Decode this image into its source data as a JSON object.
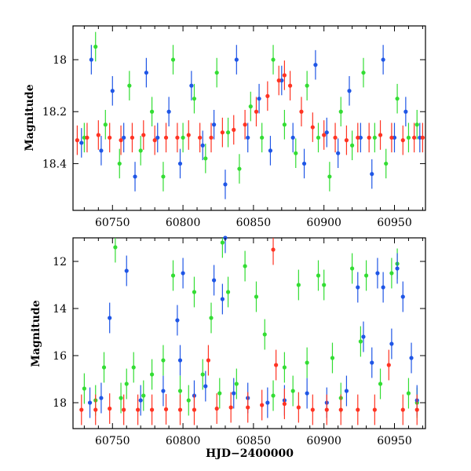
{
  "chart_data": [
    {
      "type": "scatter",
      "title": "",
      "xlabel": "",
      "ylabel": "Magnitude",
      "xlim": [
        60722,
        60972
      ],
      "ylim": [
        18.58,
        17.87
      ],
      "y_inverted": true,
      "error_bars": true,
      "x_ticks": [
        60750,
        60800,
        60850,
        60900,
        60950
      ],
      "y_ticks": [
        18,
        18.2,
        18.4
      ],
      "x_tick_labels": [
        "60750",
        "60800",
        "60850",
        "60900",
        "60950"
      ],
      "y_tick_labels": [
        "18",
        "18.2",
        "18.4"
      ],
      "series": [
        {
          "color": "#33dd33",
          "points": [
            [
              60730,
              18.3
            ],
            [
              60738,
              17.95
            ],
            [
              60745,
              18.25
            ],
            [
              60755,
              18.4
            ],
            [
              60762,
              18.1
            ],
            [
              60770,
              18.35
            ],
            [
              60778,
              18.2
            ],
            [
              60786,
              18.45
            ],
            [
              60793,
              18.0
            ],
            [
              60800,
              18.3
            ],
            [
              60808,
              18.15
            ],
            [
              60816,
              18.38
            ],
            [
              60824,
              18.05
            ],
            [
              60832,
              18.28
            ],
            [
              60840,
              18.42
            ],
            [
              60848,
              18.18
            ],
            [
              60856,
              18.3
            ],
            [
              60864,
              18.0
            ],
            [
              60872,
              18.25
            ],
            [
              60880,
              18.36
            ],
            [
              60888,
              18.1
            ],
            [
              60896,
              18.3
            ],
            [
              60904,
              18.45
            ],
            [
              60912,
              18.2
            ],
            [
              60920,
              18.33
            ],
            [
              60928,
              18.05
            ],
            [
              60936,
              18.3
            ],
            [
              60944,
              18.4
            ],
            [
              60952,
              18.15
            ],
            [
              60960,
              18.3
            ],
            [
              60966,
              18.25
            ]
          ]
        },
        {
          "color": "#1f56e6",
          "points": [
            [
              60728,
              18.32
            ],
            [
              60735,
              18.0
            ],
            [
              60742,
              18.35
            ],
            [
              60750,
              18.12
            ],
            [
              60758,
              18.3
            ],
            [
              60766,
              18.45
            ],
            [
              60774,
              18.05
            ],
            [
              60782,
              18.3
            ],
            [
              60790,
              18.2
            ],
            [
              60798,
              18.4
            ],
            [
              60806,
              18.1
            ],
            [
              60814,
              18.33
            ],
            [
              60822,
              18.25
            ],
            [
              60830,
              18.48
            ],
            [
              60838,
              18.0
            ],
            [
              60846,
              18.3
            ],
            [
              60854,
              18.15
            ],
            [
              60862,
              18.35
            ],
            [
              60870,
              18.08
            ],
            [
              60878,
              18.3
            ],
            [
              60886,
              18.4
            ],
            [
              60894,
              18.02
            ],
            [
              60902,
              18.28
            ],
            [
              60910,
              18.36
            ],
            [
              60918,
              18.12
            ],
            [
              60926,
              18.3
            ],
            [
              60934,
              18.44
            ],
            [
              60942,
              18.0
            ],
            [
              60950,
              18.3
            ],
            [
              60958,
              18.2
            ],
            [
              60968,
              18.3
            ]
          ]
        },
        {
          "color": "#ff3322",
          "points": [
            [
              60725,
              18.31
            ],
            [
              60732,
              18.3
            ],
            [
              60740,
              18.29
            ],
            [
              60748,
              18.3
            ],
            [
              60756,
              18.31
            ],
            [
              60764,
              18.3
            ],
            [
              60772,
              18.29
            ],
            [
              60780,
              18.31
            ],
            [
              60788,
              18.3
            ],
            [
              60796,
              18.3
            ],
            [
              60804,
              18.29
            ],
            [
              60812,
              18.3
            ],
            [
              60820,
              18.3
            ],
            [
              60828,
              18.28
            ],
            [
              60836,
              18.27
            ],
            [
              60844,
              18.25
            ],
            [
              60852,
              18.2
            ],
            [
              60860,
              18.14
            ],
            [
              60868,
              18.08
            ],
            [
              60872,
              18.06
            ],
            [
              60876,
              18.1
            ],
            [
              60884,
              18.2
            ],
            [
              60892,
              18.26
            ],
            [
              60900,
              18.29
            ],
            [
              60908,
              18.3
            ],
            [
              60916,
              18.31
            ],
            [
              60924,
              18.3
            ],
            [
              60932,
              18.3
            ],
            [
              60940,
              18.29
            ],
            [
              60948,
              18.3
            ],
            [
              60956,
              18.31
            ],
            [
              60964,
              18.3
            ],
            [
              60970,
              18.3
            ]
          ]
        }
      ]
    },
    {
      "type": "scatter",
      "title": "",
      "xlabel": "HJD−2400000",
      "ylabel": "Magnitude",
      "xlim": [
        60722,
        60972
      ],
      "ylim": [
        19.1,
        11.0
      ],
      "y_inverted": true,
      "error_bars": true,
      "x_ticks": [
        60750,
        60800,
        60850,
        60900,
        60950
      ],
      "y_ticks": [
        12,
        14,
        16,
        18
      ],
      "x_tick_labels": [
        "60750",
        "60800",
        "60850",
        "60900",
        "60950"
      ],
      "y_tick_labels": [
        "12",
        "14",
        "16",
        "18"
      ],
      "series": [
        {
          "color": "#33dd33",
          "points": [
            [
              60730,
              17.4
            ],
            [
              60738,
              17.9
            ],
            [
              60744,
              16.5
            ],
            [
              60752,
              11.4
            ],
            [
              60756,
              17.8
            ],
            [
              60760,
              17.2
            ],
            [
              60765,
              16.5
            ],
            [
              60772,
              17.7
            ],
            [
              60778,
              16.8
            ],
            [
              60786,
              16.2
            ],
            [
              60793,
              12.6
            ],
            [
              60798,
              17.5
            ],
            [
              60804,
              17.9
            ],
            [
              60808,
              13.3
            ],
            [
              60814,
              16.8
            ],
            [
              60820,
              14.4
            ],
            [
              60826,
              17.6
            ],
            [
              60828,
              11.2
            ],
            [
              60832,
              13.3
            ],
            [
              60838,
              17.2
            ],
            [
              60844,
              12.2
            ],
            [
              60852,
              13.5
            ],
            [
              60858,
              15.1
            ],
            [
              60864,
              17.7
            ],
            [
              60872,
              16.5
            ],
            [
              60878,
              17.5
            ],
            [
              60882,
              13.0
            ],
            [
              60888,
              16.3
            ],
            [
              60896,
              12.6
            ],
            [
              60900,
              13.0
            ],
            [
              60906,
              16.1
            ],
            [
              60912,
              17.8
            ],
            [
              60920,
              12.3
            ],
            [
              60926,
              15.4
            ],
            [
              60930,
              12.6
            ],
            [
              60940,
              17.2
            ],
            [
              60948,
              12.5
            ],
            [
              60952,
              12.1
            ],
            [
              60960,
              17.6
            ],
            [
              60966,
              18.0
            ]
          ]
        },
        {
          "color": "#1f56e6",
          "points": [
            [
              60734,
              18.0
            ],
            [
              60742,
              17.8
            ],
            [
              60748,
              14.4
            ],
            [
              60760,
              12.4
            ],
            [
              60770,
              17.9
            ],
            [
              60786,
              17.5
            ],
            [
              60796,
              14.5
            ],
            [
              60798,
              16.2
            ],
            [
              60800,
              12.5
            ],
            [
              60808,
              17.7
            ],
            [
              60816,
              17.3
            ],
            [
              60822,
              12.8
            ],
            [
              60828,
              13.6
            ],
            [
              60830,
              11.0
            ],
            [
              60836,
              17.6
            ],
            [
              60846,
              17.8
            ],
            [
              60860,
              18.0
            ],
            [
              60872,
              17.9
            ],
            [
              60888,
              17.6
            ],
            [
              60902,
              18.0
            ],
            [
              60916,
              17.5
            ],
            [
              60924,
              13.1
            ],
            [
              60928,
              15.2
            ],
            [
              60934,
              16.3
            ],
            [
              60938,
              12.5
            ],
            [
              60942,
              13.1
            ],
            [
              60948,
              15.5
            ],
            [
              60952,
              12.3
            ],
            [
              60956,
              13.5
            ],
            [
              60962,
              16.1
            ],
            [
              60966,
              17.9
            ]
          ]
        },
        {
          "color": "#ff3322",
          "points": [
            [
              60728,
              18.3
            ],
            [
              60738,
              18.3
            ],
            [
              60748,
              18.25
            ],
            [
              60758,
              18.3
            ],
            [
              60768,
              18.3
            ],
            [
              60778,
              18.3
            ],
            [
              60788,
              18.28
            ],
            [
              60798,
              18.3
            ],
            [
              60808,
              18.3
            ],
            [
              60818,
              16.2
            ],
            [
              60824,
              18.25
            ],
            [
              60834,
              18.2
            ],
            [
              60846,
              18.2
            ],
            [
              60856,
              18.1
            ],
            [
              60864,
              11.5
            ],
            [
              60866,
              16.4
            ],
            [
              60872,
              18.05
            ],
            [
              60882,
              18.2
            ],
            [
              60892,
              18.3
            ],
            [
              60902,
              18.3
            ],
            [
              60912,
              18.3
            ],
            [
              60924,
              18.3
            ],
            [
              60936,
              18.3
            ],
            [
              60946,
              16.4
            ],
            [
              60956,
              18.3
            ],
            [
              60966,
              18.3
            ]
          ]
        }
      ]
    }
  ]
}
